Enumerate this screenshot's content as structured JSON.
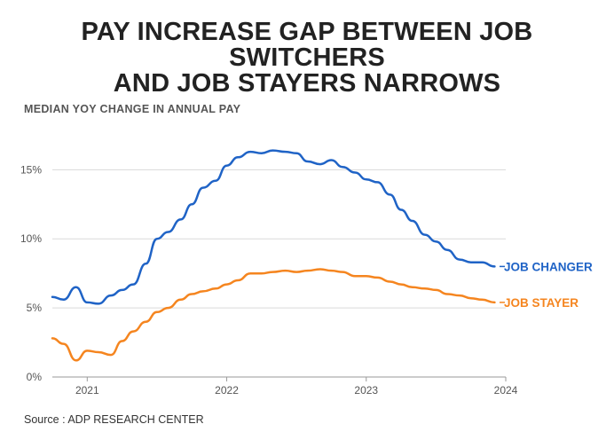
{
  "title_line1": "PAY INCREASE GAP BETWEEN JOB SWITCHERS",
  "title_line2": "AND JOB STAYERS NARROWS",
  "subtitle": "MEDIAN YOY CHANGE IN ANNUAL PAY",
  "source": "Source : ADP RESEARCH CENTER",
  "colors": {
    "changer": "#1f63c6",
    "stayer": "#f5851f",
    "grid": "#d9d9d9",
    "tick": "#555555"
  },
  "chart_data": {
    "type": "line",
    "title": "PAY INCREASE GAP BETWEEN JOB SWITCHERS AND JOB STAYERS NARROWS",
    "ylabel": "MEDIAN YOY CHANGE IN ANNUAL PAY",
    "xlim": [
      2020.75,
      2024.0
    ],
    "ylim": [
      0,
      16.5
    ],
    "xticks": [
      2021,
      2022,
      2023,
      2024
    ],
    "xtick_labels": [
      "2021",
      "2022",
      "2023",
      "2024"
    ],
    "yticks": [
      0,
      5,
      10,
      15
    ],
    "ytick_labels": [
      "0%",
      "5%",
      "10%",
      "15%"
    ],
    "grid": true,
    "series": [
      {
        "name": "JOB CHANGER",
        "label": "JOB CHANGER",
        "color": "#1f63c6",
        "x": [
          2020.75,
          2020.83,
          2020.92,
          2021.0,
          2021.08,
          2021.17,
          2021.25,
          2021.33,
          2021.42,
          2021.5,
          2021.58,
          2021.67,
          2021.75,
          2021.83,
          2021.92,
          2022.0,
          2022.08,
          2022.17,
          2022.25,
          2022.33,
          2022.42,
          2022.5,
          2022.58,
          2022.67,
          2022.75,
          2022.83,
          2022.92,
          2023.0,
          2023.08,
          2023.17,
          2023.25,
          2023.33,
          2023.42,
          2023.5,
          2023.58,
          2023.67,
          2023.75,
          2023.83,
          2023.92
        ],
        "y": [
          5.8,
          5.6,
          6.5,
          5.4,
          5.3,
          5.9,
          6.3,
          6.7,
          8.2,
          10.0,
          10.5,
          11.4,
          12.5,
          13.7,
          14.2,
          15.3,
          15.9,
          16.3,
          16.2,
          16.4,
          16.3,
          16.2,
          15.6,
          15.4,
          15.7,
          15.2,
          14.8,
          14.3,
          14.1,
          13.2,
          12.1,
          11.3,
          10.3,
          9.8,
          9.2,
          8.5,
          8.3,
          8.3,
          8.0
        ]
      },
      {
        "name": "JOB STAYER",
        "label": "JOB STAYER",
        "color": "#f5851f",
        "x": [
          2020.75,
          2020.83,
          2020.92,
          2021.0,
          2021.08,
          2021.17,
          2021.25,
          2021.33,
          2021.42,
          2021.5,
          2021.58,
          2021.67,
          2021.75,
          2021.83,
          2021.92,
          2022.0,
          2022.08,
          2022.17,
          2022.25,
          2022.33,
          2022.42,
          2022.5,
          2022.58,
          2022.67,
          2022.75,
          2022.83,
          2022.92,
          2023.0,
          2023.08,
          2023.17,
          2023.25,
          2023.33,
          2023.42,
          2023.5,
          2023.58,
          2023.67,
          2023.75,
          2023.83,
          2023.92
        ],
        "y": [
          2.8,
          2.4,
          1.2,
          1.9,
          1.8,
          1.6,
          2.6,
          3.3,
          4.0,
          4.7,
          5.0,
          5.6,
          6.0,
          6.2,
          6.4,
          6.7,
          7.0,
          7.5,
          7.5,
          7.6,
          7.7,
          7.6,
          7.7,
          7.8,
          7.7,
          7.6,
          7.3,
          7.3,
          7.2,
          6.9,
          6.7,
          6.5,
          6.4,
          6.3,
          6.0,
          5.9,
          5.7,
          5.6,
          5.4
        ]
      }
    ]
  }
}
